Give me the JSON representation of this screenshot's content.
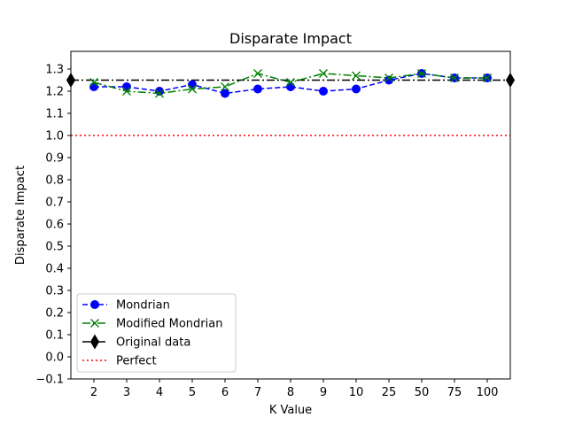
{
  "chart_data": {
    "type": "line",
    "title": "Disparate Impact",
    "xlabel": "K Value",
    "ylabel": "Disparate Impact",
    "categories": [
      "2",
      "3",
      "4",
      "5",
      "6",
      "7",
      "8",
      "9",
      "10",
      "25",
      "50",
      "75",
      "100"
    ],
    "ylim": [
      -0.1,
      1.38
    ],
    "yticks": [
      -0.1,
      0.0,
      0.1,
      0.2,
      0.3,
      0.4,
      0.5,
      0.6,
      0.7,
      0.8,
      0.9,
      1.0,
      1.1,
      1.2,
      1.3
    ],
    "ytick_labels": [
      "−0.1",
      "0.0",
      "0.1",
      "0.2",
      "0.3",
      "0.4",
      "0.5",
      "0.6",
      "0.7",
      "0.8",
      "0.9",
      "1.0",
      "1.1",
      "1.2",
      "1.3"
    ],
    "series": [
      {
        "name": "Mondrian",
        "values": [
          1.22,
          1.22,
          1.2,
          1.23,
          1.19,
          1.21,
          1.22,
          1.2,
          1.21,
          1.25,
          1.28,
          1.26,
          1.26
        ],
        "color": "#0000ff",
        "linestyle": "dashed",
        "marker": "circle"
      },
      {
        "name": "Modified Mondrian",
        "values": [
          1.24,
          1.2,
          1.19,
          1.21,
          1.22,
          1.28,
          1.24,
          1.28,
          1.27,
          1.26,
          1.28,
          1.26,
          1.26
        ],
        "color": "#008000",
        "linestyle": "dashdot",
        "marker": "x"
      }
    ],
    "reference_lines": [
      {
        "name": "Original data",
        "y": 1.25,
        "color": "#000000",
        "linestyle": "dashdot",
        "marker": "diamond"
      },
      {
        "name": "Perfect",
        "y": 1.0,
        "color": "#ff0000",
        "linestyle": "dotted"
      }
    ],
    "legend": [
      "Mondrian",
      "Modified Mondrian",
      "Original data",
      "Perfect"
    ],
    "legend_position": "lower-left",
    "grid": false
  }
}
